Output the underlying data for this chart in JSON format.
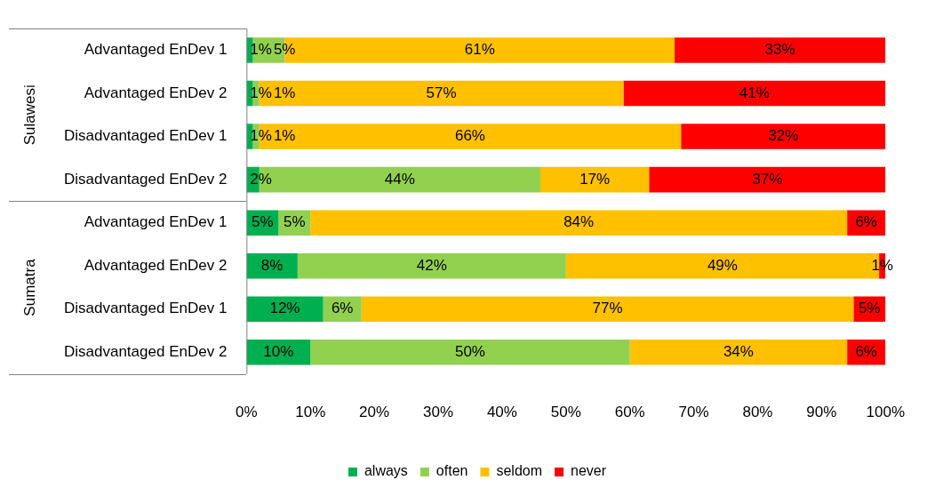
{
  "chart_data": {
    "type": "bar",
    "orientation": "horizontal",
    "stacked": true,
    "categories": [
      "Advantaged EnDev 1",
      "Advantaged EnDev 2",
      "Disadvantaged EnDev 1",
      "Disadvantaged EnDev 2",
      "Advantaged EnDev 1",
      "Advantaged EnDev 2",
      "Disadvantaged EnDev 1",
      "Disadvantaged EnDev 2"
    ],
    "series": [
      {
        "name": "always",
        "color": "#00b050",
        "values": [
          1,
          1,
          1,
          2,
          5,
          8,
          12,
          10
        ],
        "value_labels": [
          "1%",
          "1%",
          "1%",
          "2%",
          "5%",
          "8%",
          "12%",
          "10%"
        ]
      },
      {
        "name": "often",
        "color": "#92d050",
        "values": [
          5,
          1,
          1,
          44,
          5,
          42,
          6,
          50
        ],
        "value_labels": [
          "5%",
          "1%",
          "1%",
          "44%",
          "5%",
          "42%",
          "6%",
          "50%"
        ]
      },
      {
        "name": "seldom",
        "color": "#ffc000",
        "values": [
          61,
          57,
          66,
          17,
          84,
          49,
          77,
          34
        ],
        "value_labels": [
          "61%",
          "57%",
          "66%",
          "17%",
          "84%",
          "49%",
          "77%",
          "34%"
        ]
      },
      {
        "name": "never",
        "color": "#ff0000",
        "values": [
          33,
          41,
          32,
          37,
          6,
          1,
          5,
          6
        ],
        "value_labels": [
          "33%",
          "41%",
          "32%",
          "37%",
          "6%",
          "1%",
          "5%",
          "6%"
        ]
      }
    ],
    "xlim": [
      0,
      100
    ],
    "xticks": [
      {
        "value": 0,
        "label": "0%"
      },
      {
        "value": 10,
        "label": "10%"
      },
      {
        "value": 20,
        "label": "20%"
      },
      {
        "value": 30,
        "label": "30%"
      },
      {
        "value": 40,
        "label": "40%"
      },
      {
        "value": 50,
        "label": "50%"
      },
      {
        "value": 60,
        "label": "60%"
      },
      {
        "value": 70,
        "label": "70%"
      },
      {
        "value": 80,
        "label": "80%"
      },
      {
        "value": 90,
        "label": "90%"
      },
      {
        "value": 100,
        "label": "100%"
      }
    ],
    "annotations": [
      "Sulawesi",
      "Sumatra"
    ],
    "grid": false,
    "legend": "bottom"
  }
}
